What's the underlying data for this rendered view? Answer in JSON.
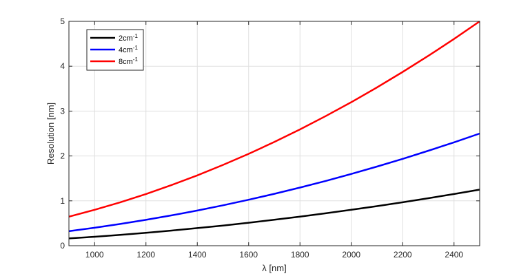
{
  "chart_data": {
    "type": "line",
    "xlabel": "λ [nm]",
    "ylabel": "Resolution [nm]",
    "xlim": [
      900,
      2500
    ],
    "ylim": [
      0,
      5
    ],
    "xticks": [
      1000,
      1200,
      1400,
      1600,
      1800,
      2000,
      2200,
      2400
    ],
    "yticks": [
      0,
      1,
      2,
      3,
      4,
      5
    ],
    "grid": true,
    "legend_position": "top-left",
    "x": [
      900,
      1000,
      1100,
      1200,
      1300,
      1400,
      1500,
      1600,
      1700,
      1800,
      1900,
      2000,
      2100,
      2200,
      2300,
      2400,
      2500
    ],
    "series": [
      {
        "name": "2cm",
        "name_sup": "-1",
        "color": "#000000",
        "values": [
          0.162,
          0.2,
          0.242,
          0.288,
          0.338,
          0.392,
          0.45,
          0.512,
          0.578,
          0.648,
          0.722,
          0.8,
          0.882,
          0.968,
          1.058,
          1.152,
          1.25
        ]
      },
      {
        "name": "4cm",
        "name_sup": "-1",
        "color": "#0000ff",
        "values": [
          0.324,
          0.4,
          0.484,
          0.576,
          0.676,
          0.784,
          0.9,
          1.024,
          1.156,
          1.296,
          1.444,
          1.6,
          1.764,
          1.936,
          2.116,
          2.304,
          2.5
        ]
      },
      {
        "name": "8cm",
        "name_sup": "-1",
        "color": "#ff0000",
        "values": [
          0.648,
          0.8,
          0.968,
          1.152,
          1.352,
          1.568,
          1.8,
          2.048,
          2.312,
          2.592,
          2.888,
          3.2,
          3.528,
          3.872,
          4.232,
          4.608,
          5.0
        ]
      }
    ]
  }
}
